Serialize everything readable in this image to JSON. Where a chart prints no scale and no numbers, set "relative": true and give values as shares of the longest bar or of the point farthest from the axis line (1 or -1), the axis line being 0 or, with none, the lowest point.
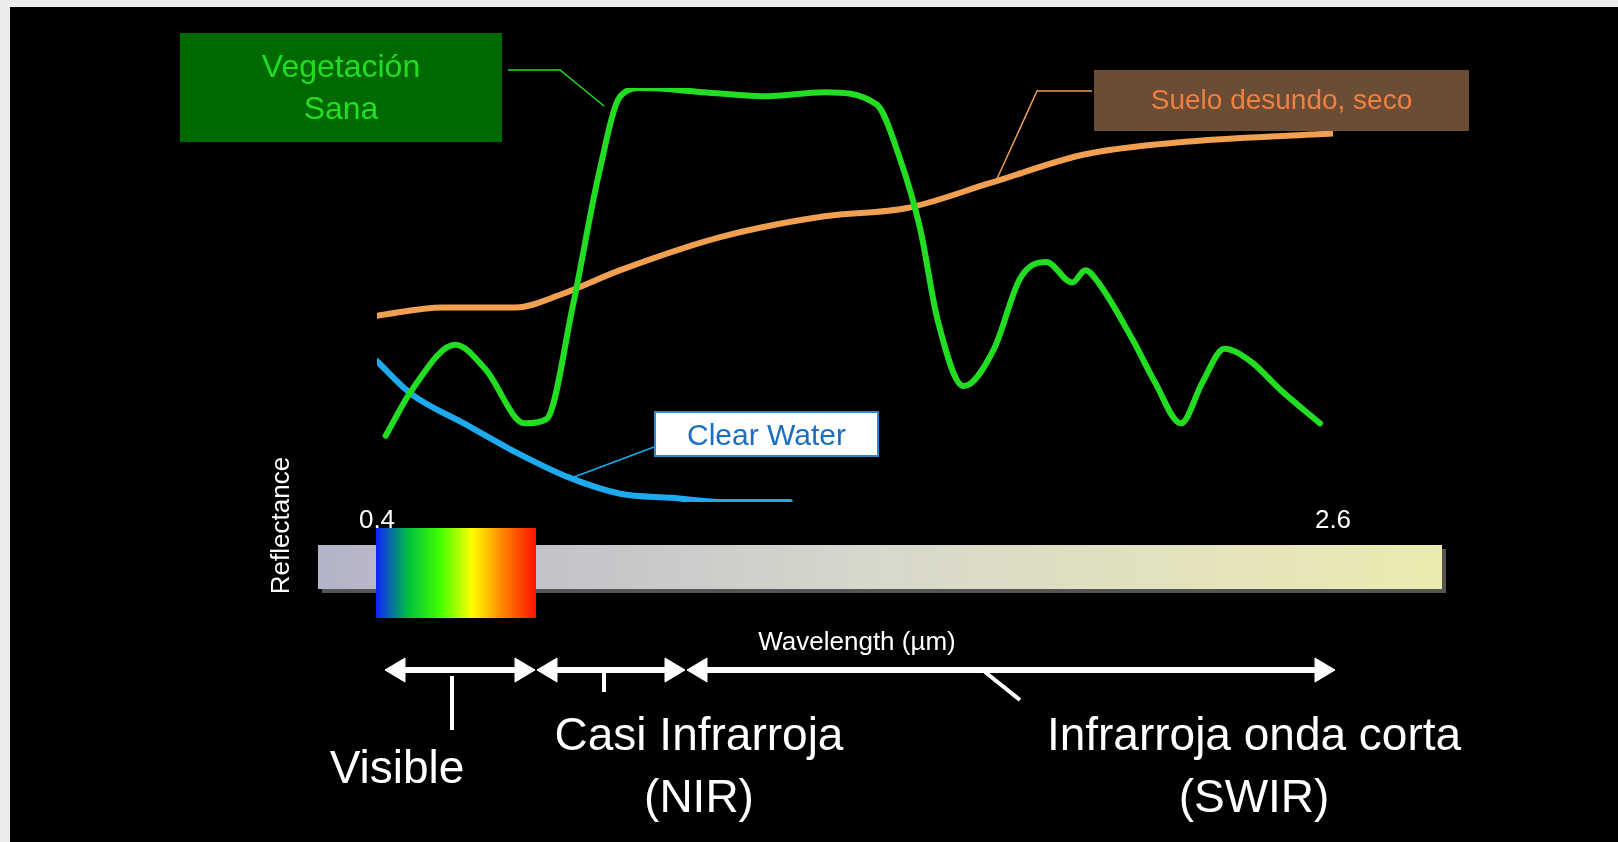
{
  "chart_data": {
    "type": "line",
    "relative": true,
    "xlabel": "Wavelength (µm)",
    "ylabel": "Reflectance",
    "xlim": [
      0.4,
      2.6
    ],
    "xticks": [
      0.4,
      2.6
    ],
    "legend": false,
    "grid": false,
    "marker": "none",
    "line_style": "solid",
    "annotations": [
      "Visible",
      "Casi Infrarroja (NIR)",
      "Infrarroja onda corta (SWIR)"
    ],
    "series": [
      {
        "name": "Vegetación Sana",
        "color": "#22dd22",
        "x": [
          0.42,
          0.48,
          0.58,
          0.65,
          0.74,
          0.79,
          0.85,
          0.91,
          0.96,
          1.01,
          1.15,
          1.29,
          1.43,
          1.55,
          1.6,
          1.65,
          1.69,
          1.75,
          1.82,
          1.88,
          1.94,
          2.0,
          2.03,
          2.06,
          2.14,
          2.19,
          2.25,
          2.3,
          2.35,
          2.41,
          2.48,
          2.57
        ],
        "values": [
          0.16,
          0.27,
          0.38,
          0.32,
          0.19,
          0.2,
          0.47,
          0.79,
          0.98,
          1.0,
          0.99,
          0.98,
          0.99,
          0.96,
          0.84,
          0.66,
          0.44,
          0.28,
          0.37,
          0.54,
          0.58,
          0.53,
          0.56,
          0.53,
          0.39,
          0.29,
          0.19,
          0.29,
          0.37,
          0.34,
          0.27,
          0.19
        ]
      },
      {
        "name": "Suelo desundo, seco",
        "color": "#f0a050",
        "x": [
          0.4,
          0.55,
          0.72,
          0.82,
          0.96,
          1.19,
          1.43,
          1.62,
          1.81,
          2.03,
          2.26,
          2.6
        ],
        "values": [
          0.45,
          0.47,
          0.47,
          0.5,
          0.56,
          0.64,
          0.69,
          0.71,
          0.77,
          0.84,
          0.87,
          0.89
        ]
      },
      {
        "name": "Clear Water",
        "color": "#1eaaee",
        "x": [
          0.4,
          0.48,
          0.6,
          0.72,
          0.84,
          0.96,
          1.08,
          1.19,
          1.35
        ],
        "values": [
          0.34,
          0.26,
          0.19,
          0.12,
          0.06,
          0.02,
          0.01,
          0.0,
          0.0
        ]
      }
    ]
  }
}
